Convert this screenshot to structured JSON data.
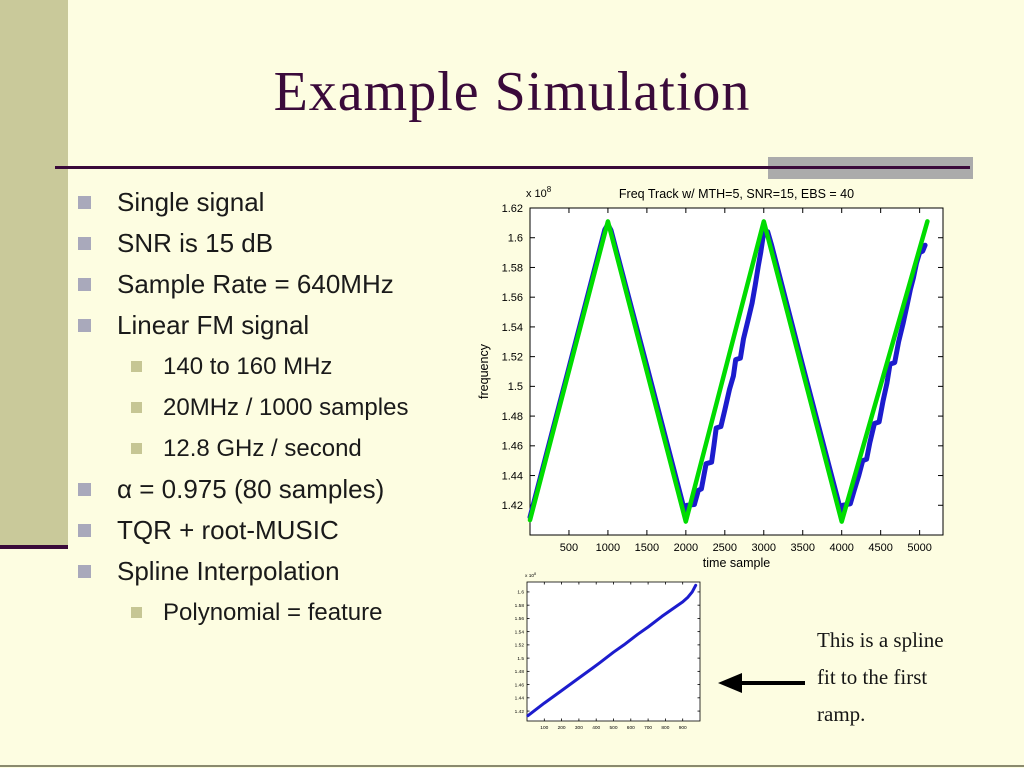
{
  "slide": {
    "title": "Example Simulation",
    "colors": {
      "background": "#fdfde1",
      "sidebar_olive": "#c9c99a",
      "accent_purple": "#3a0a3a",
      "divider_gray": "#ababab",
      "bullet_level1_gray": "#a9a9bb",
      "bullet_level2_olive": "#c6c694",
      "truth_green": "#00dc00",
      "track_blue": "#1c1ccd"
    }
  },
  "bullets": [
    {
      "level": 1,
      "text": "Single signal"
    },
    {
      "level": 1,
      "text": "SNR is 15 dB"
    },
    {
      "level": 1,
      "text": "Sample Rate = 640MHz"
    },
    {
      "level": 1,
      "text": "Linear FM signal"
    },
    {
      "level": 2,
      "text": "140 to 160 MHz"
    },
    {
      "level": 2,
      "text": "20MHz / 1000 samples"
    },
    {
      "level": 2,
      "text": "12.8 GHz / second"
    },
    {
      "level": 1,
      "text": "α = 0.975 (80 samples)"
    },
    {
      "level": 1,
      "text": "TQR + root-MUSIC"
    },
    {
      "level": 1,
      "text": "Spline Interpolation"
    },
    {
      "level": 2,
      "text": "Polynomial = feature"
    }
  ],
  "annotation": {
    "lines": [
      "This is a spline",
      "fit to the first",
      "ramp."
    ]
  },
  "chart_data": [
    {
      "type": "line",
      "title": "Freq Track w/ MTH=5, SNR=15, EBS = 40",
      "xlabel": "time sample",
      "ylabel": "frequency",
      "y_scale_label": "x 10^8",
      "xlim": [
        0,
        5300
      ],
      "ylim": [
        1.4,
        1.62
      ],
      "grid": false,
      "legend": null,
      "xtick_labels": [
        "500",
        "1000",
        "1500",
        "2000",
        "2500",
        "3000",
        "3500",
        "4000",
        "4500",
        "5000"
      ],
      "ytick_labels": [
        "1.42",
        "1.44",
        "1.46",
        "1.48",
        "1.5",
        "1.52",
        "1.54",
        "1.56",
        "1.58",
        "1.6",
        "1.62"
      ],
      "series": [
        {
          "name": "tracked-frequency",
          "color": "#1c1ccd",
          "width": 5,
          "points": [
            [
              0,
              1.412
            ],
            [
              480,
              1.5085
            ],
            [
              960,
              1.6055
            ],
            [
              1000,
              1.609
            ],
            [
              1040,
              1.605
            ],
            [
              1500,
              1.5135
            ],
            [
              1990,
              1.415
            ],
            [
              2010,
              1.42
            ],
            [
              2110,
              1.4205
            ],
            [
              2160,
              1.43
            ],
            [
              2200,
              1.431
            ],
            [
              2260,
              1.448
            ],
            [
              2330,
              1.449
            ],
            [
              2360,
              1.46
            ],
            [
              2390,
              1.472
            ],
            [
              2450,
              1.473
            ],
            [
              2500,
              1.484
            ],
            [
              2560,
              1.498
            ],
            [
              2610,
              1.507
            ],
            [
              2640,
              1.518
            ],
            [
              2700,
              1.519
            ],
            [
              2740,
              1.532
            ],
            [
              2800,
              1.545
            ],
            [
              2850,
              1.556
            ],
            [
              2890,
              1.568
            ],
            [
              2930,
              1.581
            ],
            [
              2960,
              1.59
            ],
            [
              3000,
              1.604
            ],
            [
              3050,
              1.604
            ],
            [
              3100,
              1.595
            ],
            [
              3500,
              1.514
            ],
            [
              3990,
              1.416
            ],
            [
              4010,
              1.42
            ],
            [
              4110,
              1.421
            ],
            [
              4160,
              1.43
            ],
            [
              4220,
              1.44
            ],
            [
              4270,
              1.45
            ],
            [
              4320,
              1.451
            ],
            [
              4360,
              1.462
            ],
            [
              4420,
              1.475
            ],
            [
              4480,
              1.476
            ],
            [
              4530,
              1.49
            ],
            [
              4580,
              1.502
            ],
            [
              4620,
              1.515
            ],
            [
              4680,
              1.516
            ],
            [
              4730,
              1.53
            ],
            [
              4790,
              1.543
            ],
            [
              4840,
              1.555
            ],
            [
              4880,
              1.565
            ],
            [
              4920,
              1.573
            ],
            [
              4960,
              1.583
            ],
            [
              5000,
              1.59
            ],
            [
              5040,
              1.591
            ],
            [
              5070,
              1.595
            ]
          ]
        },
        {
          "name": "true-frequency",
          "color": "#00dc00",
          "width": 4.5,
          "points": [
            [
              0,
              1.41
            ],
            [
              1000,
              1.611
            ],
            [
              2000,
              1.409
            ],
            [
              3000,
              1.611
            ],
            [
              4000,
              1.409
            ],
            [
              5100,
              1.611
            ]
          ]
        }
      ]
    },
    {
      "type": "line",
      "title": "",
      "xlabel": "",
      "ylabel": "",
      "y_scale_label": "x 10^8",
      "xlim": [
        0,
        1000
      ],
      "ylim": [
        1.405,
        1.615
      ],
      "grid": false,
      "legend": null,
      "xtick_labels": [
        "100",
        "200",
        "300",
        "400",
        "500",
        "600",
        "700",
        "800",
        "900"
      ],
      "ytick_labels": [
        "1.42",
        "1.44",
        "1.46",
        "1.48",
        "1.5",
        "1.52",
        "1.54",
        "1.56",
        "1.58",
        "1.6"
      ],
      "series": [
        {
          "name": "spline-fit-first-ramp",
          "color": "#1c1ccd",
          "width": 3,
          "points": [
            [
              5,
              1.413
            ],
            [
              100,
              1.432
            ],
            [
              200,
              1.451
            ],
            [
              300,
              1.47
            ],
            [
              380,
              1.485
            ],
            [
              420,
              1.493
            ],
            [
              500,
              1.509
            ],
            [
              560,
              1.52
            ],
            [
              640,
              1.536
            ],
            [
              700,
              1.547
            ],
            [
              780,
              1.563
            ],
            [
              840,
              1.574
            ],
            [
              900,
              1.585
            ],
            [
              930,
              1.592
            ],
            [
              955,
              1.6
            ],
            [
              975,
              1.61
            ]
          ]
        }
      ]
    }
  ]
}
